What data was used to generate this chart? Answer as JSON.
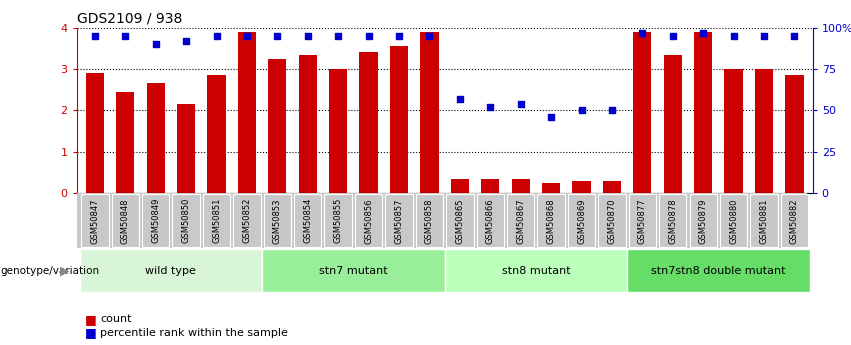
{
  "title": "GDS2109 / 938",
  "samples": [
    "GSM50847",
    "GSM50848",
    "GSM50849",
    "GSM50850",
    "GSM50851",
    "GSM50852",
    "GSM50853",
    "GSM50854",
    "GSM50855",
    "GSM50856",
    "GSM50857",
    "GSM50858",
    "GSM50865",
    "GSM50866",
    "GSM50867",
    "GSM50868",
    "GSM50869",
    "GSM50870",
    "GSM50877",
    "GSM50878",
    "GSM50879",
    "GSM50880",
    "GSM50881",
    "GSM50882"
  ],
  "counts": [
    2.9,
    2.45,
    2.65,
    2.15,
    2.85,
    3.9,
    3.25,
    3.35,
    3.0,
    3.4,
    3.55,
    3.9,
    0.35,
    0.35,
    0.35,
    0.25,
    0.3,
    0.3,
    3.9,
    3.35,
    3.9,
    3.0,
    3.0,
    2.85
  ],
  "percentile_ranks": [
    95,
    95,
    90,
    92,
    95,
    95,
    95,
    95,
    95,
    95,
    95,
    95,
    57,
    52,
    54,
    46,
    50,
    50,
    97,
    95,
    97,
    95,
    95,
    95
  ],
  "groups": [
    {
      "label": "wild type",
      "start": 0,
      "end": 5,
      "color": "#d8f5d8"
    },
    {
      "label": "stn7 mutant",
      "start": 6,
      "end": 11,
      "color": "#99ee99"
    },
    {
      "label": "stn8 mutant",
      "start": 12,
      "end": 17,
      "color": "#bbffbb"
    },
    {
      "label": "stn7stn8 double mutant",
      "start": 18,
      "end": 23,
      "color": "#66dd66"
    }
  ],
  "bar_color": "#cc0000",
  "dot_color": "#0000cc",
  "ylim_left": [
    0,
    4
  ],
  "ylim_right": [
    0,
    100
  ],
  "yticks_left": [
    0,
    1,
    2,
    3,
    4
  ],
  "ytick_labels_right": [
    "0",
    "25",
    "50",
    "75",
    "100%"
  ],
  "ytick_vals_right": [
    0,
    25,
    50,
    75,
    100
  ],
  "xtick_bg_color": "#c8c8c8",
  "legend_count_color": "#cc0000",
  "legend_dot_color": "#0000cc"
}
